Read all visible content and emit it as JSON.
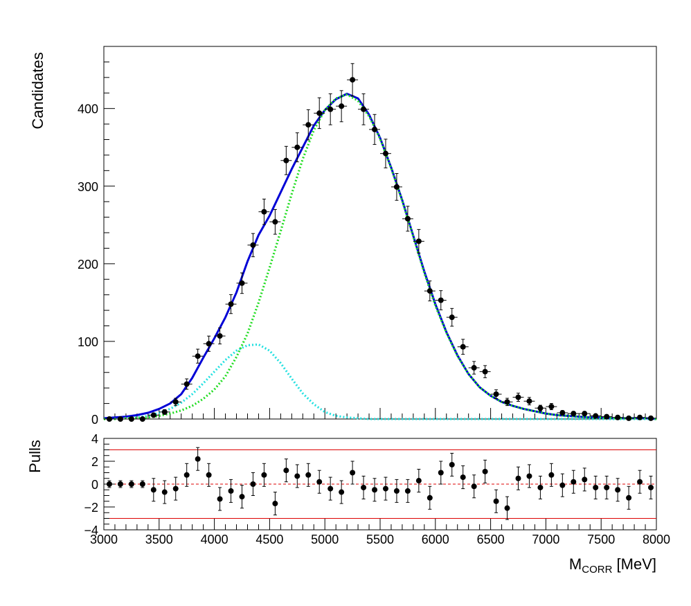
{
  "chart_data": [
    {
      "panel": "main",
      "type": "scatter",
      "ylabel": "Candidates",
      "xlabel_main": "M",
      "xlabel_sub": "CORR",
      "xlabel_unit": " [MeV]",
      "xlim": [
        3000,
        8000
      ],
      "ylim": [
        0,
        480
      ],
      "x_ticks": [
        3000,
        3500,
        4000,
        4500,
        5000,
        5500,
        6000,
        6500,
        7000,
        7500,
        8000
      ],
      "y_ticks": [
        0,
        100,
        200,
        300,
        400
      ],
      "bin_width": 100,
      "data": {
        "x": [
          3050,
          3150,
          3250,
          3350,
          3450,
          3550,
          3650,
          3750,
          3850,
          3950,
          4050,
          4150,
          4250,
          4350,
          4450,
          4550,
          4650,
          4750,
          4850,
          4950,
          5050,
          5150,
          5250,
          5350,
          5450,
          5550,
          5650,
          5750,
          5850,
          5950,
          6050,
          6150,
          6250,
          6350,
          6450,
          6550,
          6650,
          6750,
          6850,
          6950,
          7050,
          7150,
          7250,
          7350,
          7450,
          7550,
          7650,
          7750,
          7850,
          7950
        ],
        "y": [
          0,
          0,
          0,
          0,
          5,
          9,
          22,
          45,
          81,
          97,
          107,
          148,
          175,
          224,
          267,
          254,
          333,
          350,
          379,
          394,
          399,
          403,
          437,
          399,
          373,
          342,
          299,
          258,
          229,
          165,
          153,
          131,
          93,
          66,
          61,
          32,
          22,
          28,
          23,
          14,
          16,
          8,
          7,
          7,
          4,
          3,
          2,
          1,
          2,
          1
        ]
      },
      "curves": [
        {
          "name": "total",
          "color": "#0000d6",
          "style": "solid",
          "x": [
            3000,
            3100,
            3200,
            3300,
            3400,
            3500,
            3600,
            3700,
            3800,
            3900,
            4000,
            4100,
            4200,
            4300,
            4400,
            4500,
            4600,
            4700,
            4800,
            4900,
            5000,
            5100,
            5200,
            5300,
            5400,
            5500,
            5600,
            5700,
            5800,
            5900,
            6000,
            6100,
            6200,
            6300,
            6400,
            6500,
            6600,
            6700,
            6800,
            6900,
            7000,
            7100,
            7200,
            7300,
            7400,
            7500,
            7600,
            7700,
            7800,
            7900,
            8000
          ],
          "y": [
            1,
            2,
            3,
            5,
            8,
            13,
            20,
            32,
            53,
            79,
            104,
            131,
            163,
            203,
            237,
            262,
            292,
            322,
            350,
            378,
            398,
            412,
            419,
            413,
            392,
            362,
            324,
            282,
            236,
            190,
            148,
            112,
            82,
            58,
            41,
            30,
            22,
            17,
            13,
            10,
            7,
            5,
            4,
            3,
            2,
            2,
            1,
            1,
            1,
            1,
            0
          ]
        },
        {
          "name": "component-1",
          "color": "#22dd22",
          "style": "dotted",
          "x": [
            3000,
            3100,
            3200,
            3300,
            3400,
            3500,
            3600,
            3700,
            3800,
            3900,
            4000,
            4100,
            4200,
            4300,
            4400,
            4500,
            4600,
            4700,
            4800,
            4900,
            5000,
            5100,
            5200,
            5300,
            5400,
            5500,
            5600,
            5700,
            5800,
            5900,
            6000,
            6100,
            6200,
            6300,
            6400,
            6500,
            6600,
            6700,
            6800,
            6900,
            7000,
            7100,
            7200,
            7300,
            7400,
            7500,
            7600,
            7700,
            7800,
            7900,
            8000
          ],
          "y": [
            0,
            0,
            1,
            1,
            2,
            4,
            7,
            11,
            17,
            26,
            38,
            55,
            80,
            110,
            150,
            195,
            242,
            290,
            335,
            372,
            398,
            413,
            418,
            410,
            390,
            361,
            323,
            281,
            235,
            188,
            146,
            111,
            81,
            58,
            41,
            30,
            22,
            17,
            13,
            10,
            7,
            5,
            4,
            3,
            2,
            2,
            1,
            1,
            1,
            1,
            0
          ]
        },
        {
          "name": "component-2",
          "color": "#22e0e0",
          "style": "dotted",
          "x": [
            3000,
            3100,
            3200,
            3300,
            3400,
            3500,
            3600,
            3700,
            3800,
            3900,
            4000,
            4100,
            4200,
            4300,
            4400,
            4500,
            4600,
            4700,
            4800,
            4900,
            5000,
            5100,
            5200,
            5300,
            5400,
            5500,
            5600,
            5700,
            5800,
            5900,
            6000,
            6100,
            6200,
            6300,
            6400,
            6500,
            6600,
            6700,
            6800,
            6900,
            7000,
            7100,
            7200,
            7300,
            7400,
            7500,
            7600,
            7700,
            7800,
            7900,
            8000
          ],
          "y": [
            0,
            0,
            1,
            2,
            4,
            8,
            13,
            21,
            32,
            46,
            61,
            76,
            88,
            95,
            96,
            88,
            72,
            52,
            33,
            19,
            9,
            4,
            2,
            1,
            0,
            0,
            0,
            0,
            0,
            0,
            0,
            0,
            0,
            0,
            0,
            0,
            0,
            0,
            0,
            0,
            0,
            0,
            0,
            0,
            0,
            0,
            0,
            0,
            0,
            0,
            0
          ]
        }
      ]
    },
    {
      "panel": "pulls",
      "type": "scatter",
      "ylabel": "Pulls",
      "xlim": [
        3000,
        8000
      ],
      "ylim": [
        -4,
        4
      ],
      "x_ticks": [
        3000,
        3500,
        4000,
        4500,
        5000,
        5500,
        6000,
        6500,
        7000,
        7500,
        8000
      ],
      "y_ticks": [
        -4,
        -2,
        0,
        2,
        4
      ],
      "reference_lines": [
        {
          "y": 3,
          "color": "#dd0000",
          "style": "solid"
        },
        {
          "y": -3,
          "color": "#dd0000",
          "style": "solid"
        },
        {
          "y": 0,
          "color": "#dd0000",
          "style": "dashed"
        }
      ],
      "data": {
        "x": [
          3050,
          3150,
          3250,
          3350,
          3450,
          3550,
          3650,
          3750,
          3850,
          3950,
          4050,
          4150,
          4250,
          4350,
          4450,
          4550,
          4650,
          4750,
          4850,
          4950,
          5050,
          5150,
          5250,
          5350,
          5450,
          5550,
          5650,
          5750,
          5850,
          5950,
          6050,
          6150,
          6250,
          6350,
          6450,
          6550,
          6650,
          6750,
          6850,
          6950,
          7050,
          7150,
          7250,
          7350,
          7450,
          7550,
          7650,
          7750,
          7850,
          7950
        ],
        "y": [
          0,
          0,
          0,
          0,
          -0.5,
          -0.7,
          -0.4,
          0.8,
          2.2,
          0.8,
          -1.3,
          -0.6,
          -1.1,
          0,
          0.8,
          -1.7,
          1.2,
          0.7,
          0.8,
          0.2,
          -0.4,
          -0.7,
          1,
          -0.3,
          -0.5,
          -0.4,
          -0.6,
          -0.6,
          0.3,
          -1.2,
          1,
          1.7,
          0.6,
          -0.2,
          1.1,
          -1.5,
          -2.1,
          0.5,
          0.7,
          -0.3,
          0.8,
          -0.1,
          0.2,
          0.4,
          -0.3,
          -0.3,
          -0.5,
          -1.2,
          0.2,
          -0.3
        ],
        "err": [
          0.3,
          0.3,
          0.3,
          0.3,
          1,
          1,
          1,
          1,
          1,
          1,
          1,
          1,
          1,
          1,
          1,
          1,
          1,
          1,
          1,
          1,
          1,
          1,
          1,
          1,
          1,
          1,
          1,
          1,
          1,
          1,
          1,
          1,
          1,
          1,
          1,
          1,
          1,
          1,
          1,
          1,
          1,
          1,
          1,
          1,
          1,
          1,
          1,
          1,
          1,
          1
        ]
      }
    }
  ],
  "colors": {
    "axis": "#000000",
    "marker": "#000000"
  }
}
